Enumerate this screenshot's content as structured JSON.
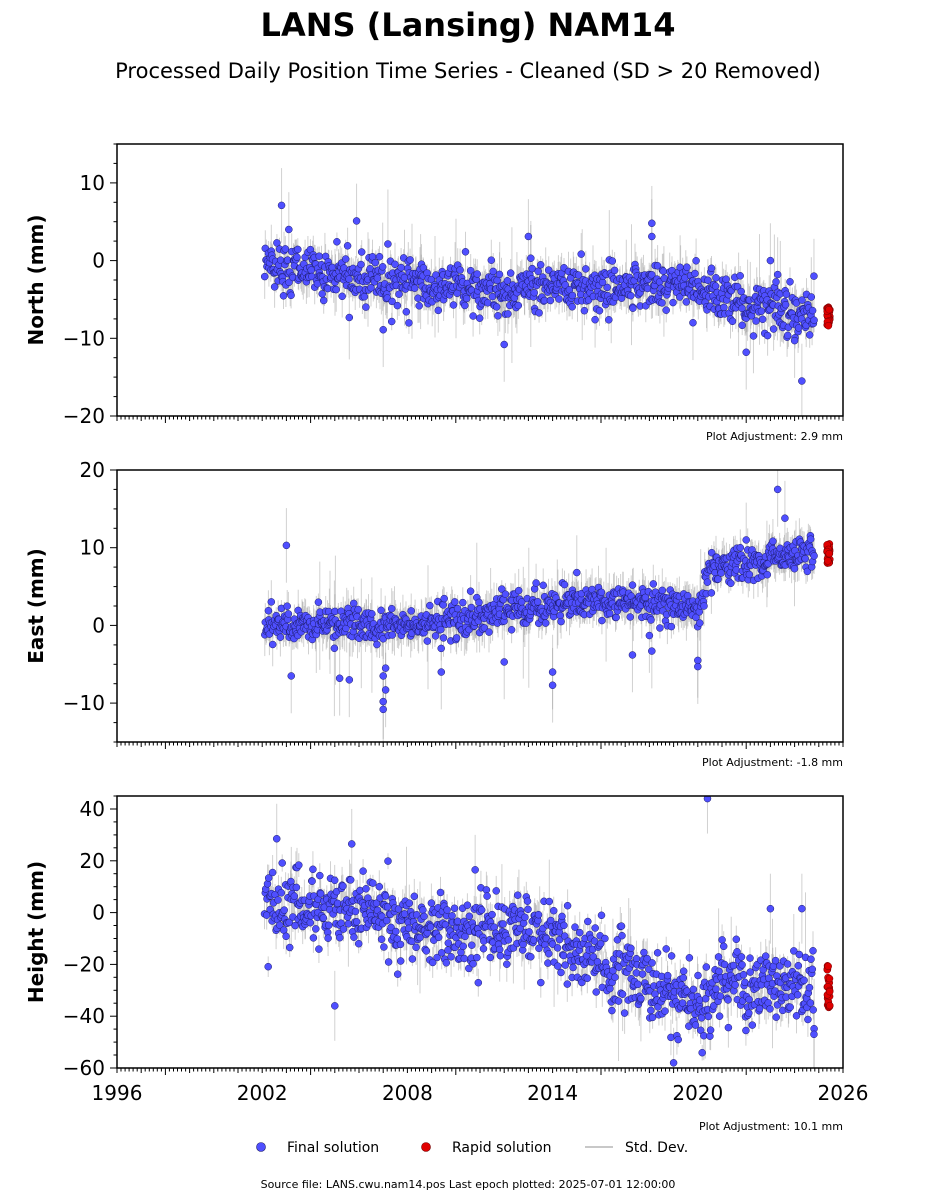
{
  "title": "LANS (Lansing) NAM14",
  "subtitle": "Processed Daily Position Time Series - Cleaned (SD > 20 Removed)",
  "legend": {
    "final_label": "Final solution",
    "rapid_label": "Rapid solution",
    "std_label": "Std. Dev."
  },
  "footer": "Source file: LANS.cwu.nam14.pos  Last epoch plotted: 2025-07-01 12:00:00",
  "colors": {
    "final": "#4f4fff",
    "final_edge": "#1a1a66",
    "rapid": "#e00000",
    "std": "#9a9a9a"
  },
  "chart_data": [
    {
      "type": "scatter",
      "ylabel": "North (mm)",
      "xlim": [
        1996,
        2026
      ],
      "ylim": [
        -20,
        15
      ],
      "yticks": [
        -20,
        -10,
        0,
        10
      ],
      "adjustment": "Plot Adjustment: 2.9 mm",
      "show_xtick_labels": false,
      "trend": [
        [
          2002.1,
          -0.5
        ],
        [
          2004,
          -1.5
        ],
        [
          2008,
          -3.0
        ],
        [
          2012,
          -3.8
        ],
        [
          2016,
          -3.2
        ],
        [
          2019.5,
          -3.0
        ],
        [
          2020.5,
          -4.0
        ],
        [
          2022,
          -6.0
        ],
        [
          2024.8,
          -7.0
        ]
      ],
      "scatter_sd": 1.5,
      "final_start": 2002.1,
      "final_end": 2024.8,
      "outliers": [
        [
          2002.8,
          7.1
        ],
        [
          2003.1,
          4.0
        ],
        [
          2005.9,
          5.1
        ],
        [
          2007.0,
          -8.9
        ],
        [
          2012.0,
          -10.8
        ],
        [
          2013.0,
          3.1
        ],
        [
          2013.1,
          0.3
        ],
        [
          2018.1,
          4.8
        ],
        [
          2018.1,
          3.1
        ],
        [
          2019.8,
          -8.0
        ],
        [
          2022.0,
          -11.8
        ],
        [
          2022.3,
          -9.7
        ],
        [
          2023.0,
          0.0
        ],
        [
          2023.3,
          -1.8
        ],
        [
          2024.0,
          -10.3
        ],
        [
          2024.3,
          -15.5
        ],
        [
          2024.8,
          -2.0
        ]
      ],
      "rapid": {
        "x": 2025.4,
        "ymin": -8.5,
        "ymax": -6.0
      }
    },
    {
      "type": "scatter",
      "ylabel": "East (mm)",
      "xlim": [
        1996,
        2026
      ],
      "ylim": [
        -15,
        20
      ],
      "yticks": [
        -10,
        0,
        10,
        20
      ],
      "adjustment": "Plot Adjustment: -1.8 mm",
      "show_xtick_labels": false,
      "trend": [
        [
          2002.1,
          0.0
        ],
        [
          2008,
          0.0
        ],
        [
          2010,
          0.5
        ],
        [
          2012,
          2.0
        ],
        [
          2014,
          2.5
        ],
        [
          2016,
          3.0
        ],
        [
          2019,
          2.5
        ],
        [
          2020.1,
          2.0
        ],
        [
          2020.4,
          7.0
        ],
        [
          2022,
          8.0
        ],
        [
          2024.8,
          9.5
        ]
      ],
      "scatter_sd": 1.1,
      "final_start": 2002.1,
      "final_end": 2024.8,
      "outliers": [
        [
          2003.0,
          10.3
        ],
        [
          2003.2,
          -6.5
        ],
        [
          2005.2,
          -6.8
        ],
        [
          2005.6,
          -7.0
        ],
        [
          2007.0,
          -10.8
        ],
        [
          2007.0,
          -9.8
        ],
        [
          2007.1,
          -8.3
        ],
        [
          2007.0,
          -6.5
        ],
        [
          2007.1,
          -5.5
        ],
        [
          2009.4,
          -6.0
        ],
        [
          2012.0,
          -4.7
        ],
        [
          2014.0,
          -7.7
        ],
        [
          2014.0,
          -6.0
        ],
        [
          2015.0,
          6.8
        ],
        [
          2017.3,
          -3.8
        ],
        [
          2018.0,
          -1.3
        ],
        [
          2018.1,
          -3.3
        ],
        [
          2020.0,
          -4.5
        ],
        [
          2020.0,
          -5.3
        ],
        [
          2022.0,
          11.0
        ],
        [
          2023.3,
          17.5
        ],
        [
          2023.6,
          13.8
        ]
      ],
      "rapid": {
        "x": 2025.4,
        "ymin": 8.0,
        "ymax": 10.5
      }
    },
    {
      "type": "scatter",
      "ylabel": "Height (mm)",
      "xlim": [
        1996,
        2026
      ],
      "ylim": [
        -60,
        45
      ],
      "yticks": [
        -60,
        -40,
        -20,
        0,
        20,
        40
      ],
      "xticks": [
        1996,
        2002,
        2008,
        2014,
        2020,
        2026
      ],
      "adjustment": "Plot Adjustment: 10.1 mm",
      "show_xtick_labels": true,
      "trend": [
        [
          2002.1,
          3.0
        ],
        [
          2006,
          0.0
        ],
        [
          2010,
          -8.0
        ],
        [
          2013,
          -5.0
        ],
        [
          2016,
          -20.0
        ],
        [
          2018,
          -28.0
        ],
        [
          2020,
          -35.0
        ],
        [
          2021,
          -28.0
        ],
        [
          2024.8,
          -28.0
        ]
      ],
      "scatter_sd": 7.0,
      "final_start": 2002.1,
      "final_end": 2024.8,
      "outliers": [
        [
          2002.6,
          28.5
        ],
        [
          2005.7,
          26.5
        ],
        [
          2010.8,
          16.5
        ],
        [
          2019.0,
          -58.0
        ],
        [
          2020.4,
          44.0
        ],
        [
          2023.0,
          1.5
        ],
        [
          2024.3,
          1.5
        ],
        [
          2005.0,
          -36.0
        ],
        [
          2024.8,
          -47.0
        ]
      ],
      "rapid": {
        "x": 2025.4,
        "ymin": -37.0,
        "ymax": -20.0
      }
    }
  ]
}
